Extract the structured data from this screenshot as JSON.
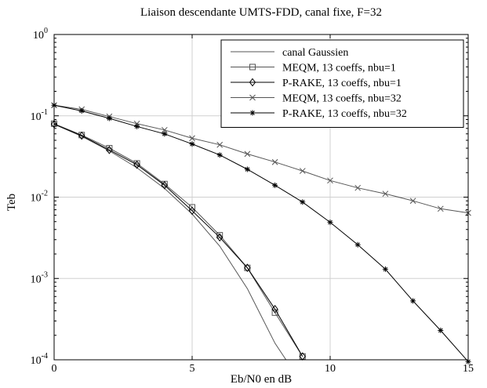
{
  "chart_data": {
    "type": "line",
    "title": "Liaison descendante UMTS-FDD, canal fixe, F=32",
    "xlabel": "Eb/N0 en dB",
    "ylabel": "Teb",
    "xlim": [
      0,
      15
    ],
    "ylim": [
      0.0001,
      1
    ],
    "yscale": "log",
    "grid": true,
    "legend_position": "top-right",
    "x_ticks": [
      {
        "value": 0,
        "label": "0"
      },
      {
        "value": 5,
        "label": "5"
      },
      {
        "value": 10,
        "label": "10"
      },
      {
        "value": 15,
        "label": "15"
      }
    ],
    "y_ticks": [
      {
        "value": 1,
        "base": "10",
        "exp": "0"
      },
      {
        "value": 0.1,
        "base": "10",
        "exp": "-1"
      },
      {
        "value": 0.01,
        "base": "10",
        "exp": "-2"
      },
      {
        "value": 0.001,
        "base": "10",
        "exp": "-3"
      },
      {
        "value": 0.0001,
        "base": "10",
        "exp": "-4"
      }
    ],
    "series": [
      {
        "name": "canal Gaussien",
        "color": "#555555",
        "marker": "none",
        "x": [
          0,
          1,
          2,
          3,
          4,
          5,
          6,
          7,
          8,
          8.4
        ],
        "y": [
          0.079,
          0.056,
          0.037,
          0.023,
          0.0128,
          0.0062,
          0.0025,
          0.00075,
          0.00016,
          0.0001
        ]
      },
      {
        "name": "MEQM, 13 coeffs, nbu=1",
        "color": "#555555",
        "marker": "square",
        "x": [
          0,
          1,
          2,
          3,
          4,
          5,
          6,
          7,
          8,
          9
        ],
        "y": [
          0.08,
          0.058,
          0.04,
          0.026,
          0.0145,
          0.0075,
          0.0034,
          0.00135,
          0.00038,
          0.00011
        ]
      },
      {
        "name": "P-RAKE, 13 coeffs, nbu=1",
        "color": "#000000",
        "marker": "diamond",
        "x": [
          0,
          1,
          2,
          3,
          4,
          5,
          6,
          7,
          8,
          9
        ],
        "y": [
          0.079,
          0.057,
          0.038,
          0.025,
          0.014,
          0.0068,
          0.0032,
          0.00135,
          0.00042,
          0.00011
        ]
      },
      {
        "name": "MEQM, 13 coeffs, nbu=32",
        "color": "#555555",
        "marker": "x",
        "x": [
          0,
          1,
          2,
          3,
          4,
          5,
          6,
          7,
          8,
          9,
          10,
          11,
          12,
          13,
          14,
          15
        ],
        "y": [
          0.135,
          0.12,
          0.098,
          0.08,
          0.067,
          0.053,
          0.044,
          0.034,
          0.027,
          0.021,
          0.016,
          0.013,
          0.011,
          0.009,
          0.0072,
          0.0064
        ]
      },
      {
        "name": "P-RAKE, 13 coeffs, nbu=32",
        "color": "#000000",
        "marker": "star",
        "x": [
          0,
          1,
          2,
          3,
          4,
          5,
          6,
          7,
          8,
          9,
          10,
          11,
          12,
          13,
          14,
          15
        ],
        "y": [
          0.135,
          0.115,
          0.093,
          0.074,
          0.06,
          0.045,
          0.033,
          0.022,
          0.014,
          0.0087,
          0.0049,
          0.0026,
          0.0013,
          0.00053,
          0.00023,
          9.5e-05
        ]
      }
    ]
  }
}
